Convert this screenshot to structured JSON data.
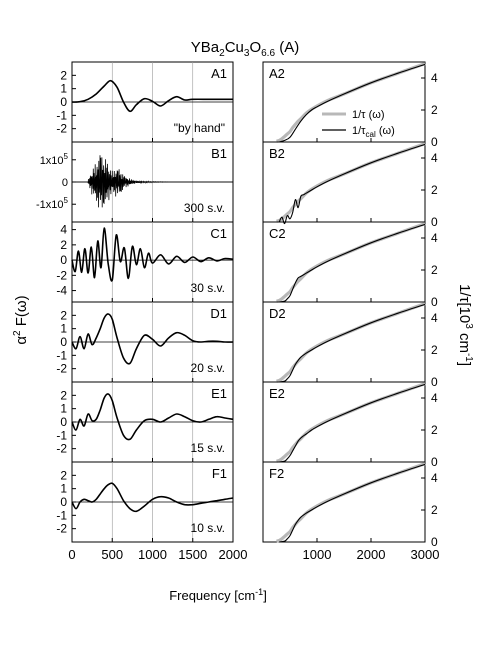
{
  "figure": {
    "title_main": "YBa",
    "title_sub1": "2",
    "title_mid": "Cu",
    "title_sub2": "3",
    "title_o": "O",
    "title_sub3": "6.6",
    "title_suffix": " (A)",
    "left_ylabel_main": "α",
    "left_ylabel_sup": "2",
    "left_ylabel_rest": " F(ω)",
    "right_ylabel_main": "1/τ[10",
    "right_ylabel_sup": "3",
    "right_ylabel_mid": " cm",
    "right_ylabel_sup2": "-1",
    "right_ylabel_end": "]",
    "xlabel": "Frequency [cm",
    "xlabel_sup": "-1",
    "xlabel_end": "]"
  },
  "legend": {
    "item1": "1/τ (ω)",
    "item2_main": "1/τ",
    "item2_sub": "cal",
    "item2_end": " (ω)"
  },
  "colors": {
    "line": "#000000",
    "exp": "#b8b8b8",
    "grid": "#9a9a9a"
  },
  "chart_data": [
    {
      "type": "line",
      "panel": "A1",
      "note": "\"by hand\"",
      "xlim": [
        0,
        2000
      ],
      "ylim": [
        -3,
        3
      ],
      "yticks": [
        2,
        1,
        0,
        -1,
        -2
      ],
      "x": [
        0,
        100,
        200,
        300,
        400,
        480,
        560,
        640,
        720,
        800,
        900,
        1000,
        1100,
        1200,
        1300,
        1400,
        1500,
        1700,
        1900,
        2000
      ],
      "y": [
        0,
        0.02,
        0.2,
        0.6,
        1.2,
        1.6,
        1.1,
        0.0,
        -0.7,
        -0.2,
        0.25,
        0.05,
        -0.3,
        0.1,
        0.4,
        0.15,
        0.2,
        0.2,
        0.2,
        0.2
      ]
    },
    {
      "type": "line",
      "panel": "B1",
      "note": "300 s.v.",
      "xlim": [
        0,
        2000
      ],
      "ylim": [
        -180000,
        180000
      ],
      "yticks": [
        "1x10^5",
        "0",
        "-1x10^5"
      ],
      "envelope_x": [
        200,
        250,
        300,
        350,
        400,
        450,
        500,
        550,
        600,
        650,
        700,
        750,
        800,
        900,
        1000,
        1200
      ],
      "envelope_y": [
        10000,
        60000,
        90000,
        150000,
        120000,
        90000,
        50000,
        70000,
        60000,
        30000,
        20000,
        10000,
        6000,
        3000,
        1500,
        500
      ]
    },
    {
      "type": "line",
      "panel": "C1",
      "note": "30 s.v.",
      "xlim": [
        0,
        2000
      ],
      "ylim": [
        -5.5,
        5
      ],
      "yticks": [
        4,
        2,
        0,
        -2,
        -4
      ],
      "x": [
        0,
        40,
        80,
        120,
        160,
        200,
        240,
        280,
        320,
        360,
        400,
        450,
        500,
        550,
        600,
        650,
        700,
        750,
        800,
        850,
        900,
        950,
        1000,
        1100,
        1200,
        1300,
        1400,
        1500,
        1600,
        1700,
        1800,
        1900,
        2000
      ],
      "y": [
        0,
        -1.5,
        1.2,
        -1.6,
        1.5,
        -1.7,
        1.7,
        -2.3,
        2.5,
        -1.0,
        4.2,
        -0.5,
        -2.6,
        3.3,
        -0.2,
        1.6,
        -2.4,
        1.8,
        -0.6,
        1.5,
        -1.0,
        0.9,
        -0.4,
        0.7,
        -0.5,
        0.5,
        -0.3,
        0.4,
        -0.2,
        0.3,
        -0.1,
        0.2,
        0.1
      ]
    },
    {
      "type": "line",
      "panel": "D1",
      "note": "20 s.v.",
      "xlim": [
        0,
        2000
      ],
      "ylim": [
        -3,
        3
      ],
      "yticks": [
        2,
        1,
        0,
        -1,
        -2
      ],
      "x": [
        0,
        50,
        100,
        150,
        200,
        250,
        300,
        350,
        400,
        450,
        500,
        560,
        640,
        720,
        800,
        900,
        1000,
        1100,
        1200,
        1300,
        1400,
        1500,
        1600,
        1700,
        1800,
        1900,
        2000
      ],
      "y": [
        0,
        -0.5,
        0.4,
        -0.5,
        0.6,
        -0.2,
        0.3,
        1.0,
        1.8,
        2.1,
        1.7,
        0.3,
        -1.2,
        -1.6,
        -0.5,
        0.5,
        0.2,
        -0.3,
        0.3,
        0.7,
        0.5,
        0.1,
        0.0,
        0.05,
        0.05,
        0.0,
        0.0
      ]
    },
    {
      "type": "line",
      "panel": "E1",
      "note": "15 s.v.",
      "xlim": [
        0,
        2000
      ],
      "ylim": [
        -3,
        3
      ],
      "yticks": [
        2,
        1,
        0,
        -1,
        -2
      ],
      "x": [
        0,
        50,
        100,
        150,
        200,
        250,
        300,
        350,
        400,
        450,
        500,
        560,
        640,
        720,
        800,
        900,
        1000,
        1100,
        1200,
        1300,
        1400,
        1500,
        1600,
        1700,
        1800,
        1900,
        2000
      ],
      "y": [
        0,
        -0.6,
        0.2,
        -0.3,
        0.6,
        0.1,
        0.2,
        0.9,
        1.8,
        2.1,
        1.6,
        0.3,
        -1.0,
        -1.3,
        -0.6,
        0.1,
        0.2,
        0.0,
        0.3,
        0.6,
        0.4,
        0.1,
        0.0,
        0.2,
        0.4,
        0.3,
        0.2
      ]
    },
    {
      "type": "line",
      "panel": "F1",
      "note": "10 s.v.",
      "xlim": [
        0,
        2000
      ],
      "ylim": [
        -3,
        3
      ],
      "yticks": [
        2,
        1,
        0,
        -1,
        -2
      ],
      "x": [
        0,
        50,
        100,
        150,
        200,
        250,
        300,
        350,
        400,
        450,
        500,
        560,
        640,
        720,
        800,
        900,
        1000,
        1100,
        1200,
        1300,
        1400,
        1500,
        1600,
        1700,
        1800,
        1900,
        2000
      ],
      "y": [
        0,
        -0.5,
        0.0,
        0.2,
        0.1,
        0.0,
        0.2,
        0.6,
        1.0,
        1.3,
        1.4,
        1.0,
        0.1,
        -0.5,
        -0.7,
        -0.3,
        0.2,
        0.4,
        0.3,
        0.0,
        -0.2,
        -0.2,
        -0.1,
        0.0,
        0.1,
        0.2,
        0.3
      ]
    },
    {
      "type": "line",
      "panel": "A2",
      "xlim": [
        0,
        3000
      ],
      "ylim": [
        0,
        5
      ],
      "yticks": [
        4,
        2,
        0
      ],
      "exp_x": [
        250,
        300,
        350,
        400,
        450,
        500,
        550,
        600,
        650,
        700,
        800,
        900,
        1000,
        1200,
        1500,
        2000,
        2500,
        3000
      ],
      "exp_y": [
        0.05,
        0.1,
        0.2,
        0.35,
        0.5,
        0.65,
        0.9,
        1.1,
        1.3,
        1.45,
        1.8,
        2.05,
        2.25,
        2.6,
        3.0,
        3.7,
        4.3,
        4.9
      ],
      "cal_x": [
        300,
        400,
        500,
        600,
        700,
        800,
        900,
        1000,
        1200,
        1500,
        2000,
        2500,
        3000
      ],
      "cal_y": [
        0.0,
        0.1,
        0.3,
        0.8,
        1.3,
        1.7,
        2.0,
        2.2,
        2.55,
        3.0,
        3.7,
        4.3,
        4.85
      ]
    },
    {
      "type": "line",
      "panel": "B2",
      "xlim": [
        0,
        3000
      ],
      "ylim": [
        0,
        5
      ],
      "yticks": [
        4,
        2,
        0
      ],
      "exp_x": [
        250,
        300,
        350,
        400,
        450,
        500,
        550,
        600,
        650,
        700,
        800,
        900,
        1000,
        1200,
        1500,
        2000,
        2500,
        3000
      ],
      "exp_y": [
        0.05,
        0.1,
        0.2,
        0.35,
        0.5,
        0.65,
        0.9,
        1.1,
        1.3,
        1.45,
        1.8,
        2.05,
        2.25,
        2.6,
        3.0,
        3.7,
        4.3,
        4.9
      ],
      "cal_x": [
        300,
        350,
        400,
        450,
        500,
        550,
        600,
        650,
        700,
        750,
        800,
        900,
        1000,
        1200,
        1500,
        2000,
        2500,
        3000
      ],
      "cal_y": [
        0.0,
        0.3,
        -0.1,
        0.4,
        0.2,
        0.6,
        1.4,
        0.9,
        1.6,
        1.7,
        1.8,
        2.0,
        2.2,
        2.55,
        3.0,
        3.7,
        4.3,
        4.85
      ]
    },
    {
      "type": "line",
      "panel": "C2",
      "xlim": [
        0,
        3000
      ],
      "ylim": [
        0,
        5
      ],
      "yticks": [
        4,
        2,
        0
      ],
      "exp_x": [
        250,
        300,
        350,
        400,
        450,
        500,
        550,
        600,
        650,
        700,
        800,
        900,
        1000,
        1200,
        1500,
        2000,
        2500,
        3000
      ],
      "exp_y": [
        0.05,
        0.1,
        0.2,
        0.35,
        0.5,
        0.65,
        0.9,
        1.1,
        1.3,
        1.45,
        1.8,
        2.05,
        2.25,
        2.6,
        3.0,
        3.7,
        4.3,
        4.9
      ],
      "cal_x": [
        300,
        400,
        450,
        500,
        550,
        600,
        650,
        700,
        800,
        900,
        1000,
        1200,
        1500,
        2000,
        2500,
        3000
      ],
      "cal_y": [
        0.0,
        0.05,
        0.2,
        0.4,
        0.8,
        1.2,
        1.5,
        1.6,
        1.8,
        2.0,
        2.2,
        2.55,
        3.0,
        3.7,
        4.3,
        4.85
      ]
    },
    {
      "type": "line",
      "panel": "D2",
      "xlim": [
        0,
        3000
      ],
      "ylim": [
        0,
        5
      ],
      "yticks": [
        4,
        2,
        0
      ],
      "exp_x": [
        250,
        300,
        350,
        400,
        450,
        500,
        550,
        600,
        650,
        700,
        800,
        900,
        1000,
        1200,
        1500,
        2000,
        2500,
        3000
      ],
      "exp_y": [
        0.05,
        0.1,
        0.2,
        0.35,
        0.5,
        0.65,
        0.9,
        1.1,
        1.3,
        1.45,
        1.8,
        2.05,
        2.25,
        2.6,
        3.0,
        3.7,
        4.3,
        4.9
      ],
      "cal_x": [
        300,
        400,
        450,
        500,
        550,
        600,
        650,
        700,
        800,
        900,
        1000,
        1200,
        1500,
        2000,
        2500,
        3000
      ],
      "cal_y": [
        0.0,
        0.05,
        0.2,
        0.4,
        0.75,
        1.1,
        1.35,
        1.55,
        1.8,
        2.0,
        2.2,
        2.55,
        3.0,
        3.7,
        4.3,
        4.85
      ]
    },
    {
      "type": "line",
      "panel": "E2",
      "xlim": [
        0,
        3000
      ],
      "ylim": [
        0,
        5
      ],
      "yticks": [
        4,
        2,
        0
      ],
      "exp_x": [
        250,
        300,
        350,
        400,
        450,
        500,
        550,
        600,
        650,
        700,
        800,
        900,
        1000,
        1200,
        1500,
        2000,
        2500,
        3000
      ],
      "exp_y": [
        0.05,
        0.1,
        0.2,
        0.35,
        0.5,
        0.65,
        0.9,
        1.1,
        1.3,
        1.45,
        1.8,
        2.05,
        2.25,
        2.6,
        3.0,
        3.7,
        4.3,
        4.9
      ],
      "cal_x": [
        300,
        400,
        450,
        500,
        550,
        600,
        650,
        700,
        800,
        900,
        1000,
        1200,
        1500,
        2000,
        2500,
        3000
      ],
      "cal_y": [
        0.0,
        0.05,
        0.2,
        0.4,
        0.7,
        1.0,
        1.3,
        1.5,
        1.75,
        2.0,
        2.2,
        2.55,
        3.0,
        3.7,
        4.3,
        4.85
      ]
    },
    {
      "type": "line",
      "panel": "F2",
      "xlim": [
        0,
        3000
      ],
      "ylim": [
        0,
        5
      ],
      "yticks": [
        4,
        2,
        0
      ],
      "exp_x": [
        250,
        300,
        350,
        400,
        450,
        500,
        550,
        600,
        650,
        700,
        800,
        900,
        1000,
        1200,
        1500,
        2000,
        2500,
        3000
      ],
      "exp_y": [
        0.05,
        0.1,
        0.2,
        0.35,
        0.5,
        0.65,
        0.9,
        1.1,
        1.3,
        1.45,
        1.8,
        2.05,
        2.25,
        2.6,
        3.0,
        3.7,
        4.3,
        4.9
      ],
      "cal_x": [
        300,
        400,
        450,
        500,
        550,
        600,
        650,
        700,
        800,
        900,
        1000,
        1200,
        1500,
        2000,
        2500,
        3000
      ],
      "cal_y": [
        0.0,
        0.05,
        0.2,
        0.4,
        0.75,
        1.1,
        1.35,
        1.55,
        1.8,
        2.0,
        2.2,
        2.55,
        3.0,
        3.7,
        4.3,
        4.85
      ]
    }
  ],
  "axes": {
    "left_xticks": [
      "0",
      "500",
      "1000",
      "1500",
      "2000"
    ],
    "right_xticks": [
      "1000",
      "2000",
      "3000"
    ]
  }
}
